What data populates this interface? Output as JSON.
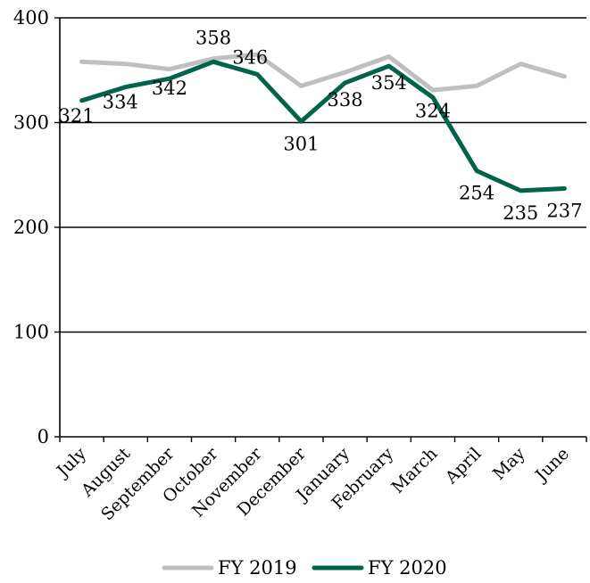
{
  "chart_data": {
    "type": "line",
    "categories": [
      "July",
      "August",
      "September",
      "October",
      "November",
      "December",
      "January",
      "February",
      "March",
      "April",
      "May",
      "June"
    ],
    "ylim": [
      0,
      400
    ],
    "yticks": [
      0,
      100,
      200,
      300,
      400
    ],
    "grid": "horizontal",
    "legend_position": "bottom",
    "series": [
      {
        "name": "FY 2019",
        "color": "#bfbfbf",
        "values": [
          358,
          356,
          351,
          361,
          365,
          335,
          348,
          363,
          331,
          335,
          356,
          344
        ]
      },
      {
        "name": "FY 2020",
        "color": "#00634a",
        "values": [
          321,
          334,
          342,
          358,
          346,
          301,
          338,
          354,
          324,
          254,
          235,
          237
        ],
        "data_labels": [
          "321",
          "334",
          "342",
          "358",
          "346",
          "301",
          "338",
          "354",
          "324",
          "254",
          "235",
          "237"
        ]
      }
    ]
  }
}
